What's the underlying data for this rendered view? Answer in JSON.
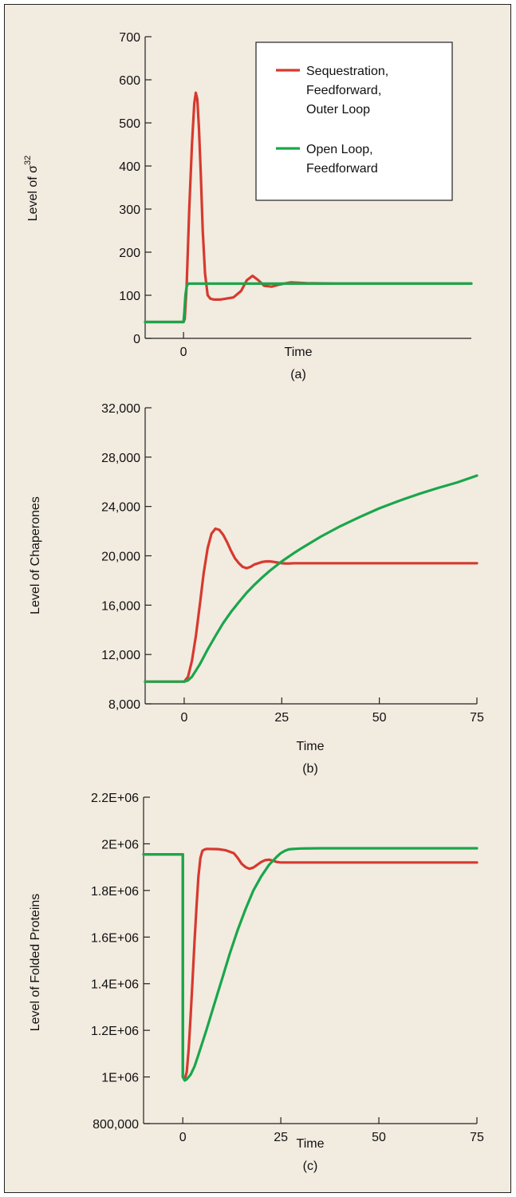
{
  "colors": {
    "background": "#f2ebe0",
    "red": "#d63a2f",
    "green": "#1aa64b"
  },
  "chart_data": [
    {
      "type": "line",
      "panel": "(a)",
      "xlabel": "Time",
      "ylabel": "Level of σ",
      "ylabel_superscript": "32",
      "ylim": [
        0,
        700
      ],
      "xlim": [
        -10,
        75
      ],
      "x_ticks": [
        0
      ],
      "x_tick_labels": [
        "0"
      ],
      "y_ticks": [
        0,
        100,
        200,
        300,
        400,
        500,
        600,
        700
      ],
      "y_tick_labels": [
        "0",
        "100",
        "200",
        "300",
        "400",
        "500",
        "600",
        "700"
      ],
      "legend": {
        "position": "top-right",
        "entries": [
          "Sequestration, Feedforward, Outer Loop",
          "Open Loop, Feedforward"
        ]
      },
      "series": [
        {
          "name": "Sequestration, Feedforward, Outer Loop",
          "color": "red",
          "x": [
            -10,
            0,
            0.3,
            0.8,
            1.5,
            2.2,
            2.8,
            3.2,
            3.6,
            4.0,
            4.5,
            5.0,
            5.6,
            6.3,
            7.0,
            8.0,
            9.5,
            11,
            13,
            15,
            16.5,
            18,
            19.5,
            21,
            23,
            25,
            28,
            32,
            40,
            50,
            75
          ],
          "y": [
            38,
            38,
            45,
            120,
            300,
            450,
            545,
            570,
            555,
            490,
            380,
            250,
            150,
            100,
            92,
            90,
            90,
            92,
            95,
            110,
            135,
            145,
            135,
            122,
            120,
            125,
            130,
            128,
            127,
            127,
            127
          ]
        },
        {
          "name": "Open Loop, Feedforward",
          "color": "green",
          "x": [
            -10,
            0,
            0.2,
            0.5,
            0.8,
            1.2,
            2,
            75
          ],
          "y": [
            38,
            38,
            60,
            100,
            120,
            127,
            127,
            127
          ]
        }
      ]
    },
    {
      "type": "line",
      "panel": "(b)",
      "xlabel": "Time",
      "ylabel": "Level of Chaperones",
      "ylim": [
        8000,
        32000
      ],
      "xlim": [
        -10,
        75
      ],
      "x_ticks": [
        0,
        25,
        50,
        75
      ],
      "x_tick_labels": [
        "0",
        "25",
        "50",
        "75"
      ],
      "y_ticks": [
        8000,
        12000,
        16000,
        20000,
        24000,
        28000,
        32000
      ],
      "y_tick_labels": [
        "8,000",
        "12,000",
        "16,000",
        "20,000",
        "24,000",
        "28,000",
        "32,000"
      ],
      "series": [
        {
          "name": "Sequestration, Feedforward, Outer Loop",
          "color": "red",
          "x": [
            -10,
            0,
            1,
            2,
            3,
            4,
            5,
            6,
            7,
            8,
            9,
            10,
            11,
            12,
            13,
            14,
            15,
            16,
            17,
            18,
            19,
            20,
            21,
            22,
            23,
            24,
            25,
            26,
            27,
            28,
            30,
            35,
            40,
            50,
            75
          ],
          "y": [
            9800,
            9800,
            10200,
            11500,
            13500,
            16000,
            18600,
            20600,
            21800,
            22200,
            22100,
            21700,
            21100,
            20400,
            19800,
            19400,
            19100,
            19000,
            19100,
            19300,
            19400,
            19500,
            19550,
            19550,
            19500,
            19450,
            19400,
            19380,
            19380,
            19400,
            19400,
            19400,
            19400,
            19400,
            19400
          ]
        },
        {
          "name": "Open Loop, Feedforward",
          "color": "green",
          "x": [
            -10,
            0,
            1,
            2,
            3,
            4,
            5,
            6,
            8,
            10,
            12,
            14,
            16,
            18,
            20,
            22,
            25,
            28,
            30,
            35,
            40,
            45,
            50,
            55,
            60,
            65,
            70,
            75
          ],
          "y": [
            9800,
            9800,
            9900,
            10200,
            10700,
            11200,
            11800,
            12400,
            13500,
            14550,
            15450,
            16250,
            17000,
            17650,
            18250,
            18800,
            19550,
            20200,
            20600,
            21550,
            22400,
            23150,
            23850,
            24450,
            25000,
            25500,
            25950,
            26500
          ]
        }
      ]
    },
    {
      "type": "line",
      "panel": "(c)",
      "xlabel": "Time",
      "ylabel": "Level of Folded Proteins",
      "ylim": [
        800000,
        2200000
      ],
      "xlim": [
        -10,
        75
      ],
      "x_ticks": [
        0,
        25,
        50,
        75
      ],
      "x_tick_labels": [
        "0",
        "25",
        "50",
        "75"
      ],
      "y_ticks": [
        800000,
        1000000,
        1200000,
        1400000,
        1600000,
        1800000,
        2000000,
        2200000
      ],
      "y_tick_labels": [
        "800,000",
        "1E+06",
        "1.2E+06",
        "1.4E+06",
        "1.6E+06",
        "1.8E+06",
        "2E+06",
        "2.2E+06"
      ],
      "series": [
        {
          "name": "Sequestration, Feedforward, Outer Loop",
          "color": "red",
          "x": [
            -10,
            0,
            0.01,
            0.5,
            1,
            1.5,
            2,
            2.5,
            3,
            3.5,
            4,
            4.5,
            5,
            5.5,
            6,
            7,
            9,
            11,
            13,
            14,
            15,
            16,
            17,
            18,
            19,
            20,
            21,
            22,
            23,
            24,
            25,
            27,
            30,
            40,
            50,
            75
          ],
          "y": [
            1955000,
            1955000,
            1000000,
            990000,
            1020000,
            1120000,
            1260000,
            1420000,
            1580000,
            1730000,
            1860000,
            1940000,
            1970000,
            1975000,
            1978000,
            1978000,
            1977000,
            1972000,
            1960000,
            1940000,
            1915000,
            1900000,
            1893000,
            1898000,
            1910000,
            1922000,
            1930000,
            1932000,
            1928000,
            1922000,
            1920000,
            1920000,
            1920000,
            1920000,
            1920000,
            1920000
          ]
        },
        {
          "name": "Open Loop, Feedforward",
          "color": "green",
          "x": [
            -10,
            0,
            0.01,
            0.5,
            1,
            2,
            3,
            4,
            6,
            8,
            10,
            12,
            14,
            16,
            18,
            20,
            22,
            24,
            25,
            26,
            27,
            28,
            30,
            35,
            40,
            50,
            75
          ],
          "y": [
            1955000,
            1955000,
            1000000,
            985000,
            990000,
            1010000,
            1045000,
            1095000,
            1200000,
            1310000,
            1420000,
            1530000,
            1630000,
            1720000,
            1800000,
            1860000,
            1910000,
            1945000,
            1960000,
            1970000,
            1976000,
            1978000,
            1980000,
            1981000,
            1981000,
            1981000,
            1981000
          ]
        }
      ]
    }
  ]
}
